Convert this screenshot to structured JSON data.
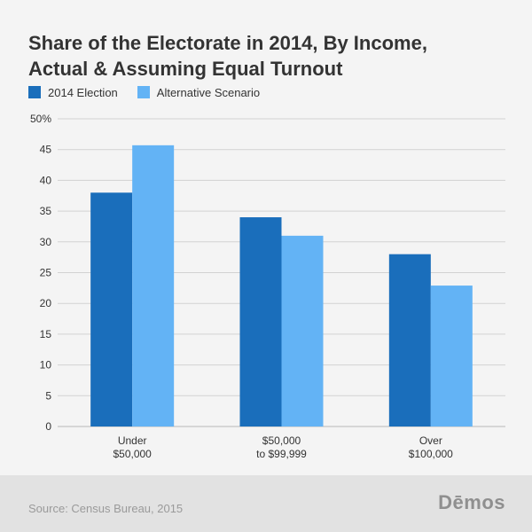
{
  "header": {
    "title_line1": "Share of the Electorate in 2014, By Income,",
    "title_line2": "Actual & Assuming Equal Turnout"
  },
  "legend": [
    {
      "label": "2014 Election",
      "color": "#1a6ebb"
    },
    {
      "label": "Alternative Scenario",
      "color": "#63b3f5"
    }
  ],
  "chart_data": {
    "type": "bar",
    "title": "Share of the Electorate in 2014, By Income, Actual & Assuming Equal Turnout",
    "categories": [
      {
        "line1": "Under",
        "line2": "$50,000"
      },
      {
        "line1": "$50,000",
        "line2": "to $99,999"
      },
      {
        "line1": "Over",
        "line2": "$100,000"
      }
    ],
    "series": [
      {
        "name": "2014 Election",
        "color": "#1a6ebb",
        "values": [
          38,
          34,
          28
        ]
      },
      {
        "name": "Alternative Scenario",
        "color": "#63b3f5",
        "values": [
          45.7,
          31,
          22.9
        ]
      }
    ],
    "y_ticks": [
      "0",
      "5",
      "10",
      "15",
      "20",
      "25",
      "30",
      "35",
      "40",
      "45",
      "50%"
    ],
    "ylim": [
      0,
      50
    ],
    "grid": true,
    "legend_position": "top-left"
  },
  "footer": {
    "source": "Source: Census Bureau, 2015",
    "brand": "Dēmos"
  }
}
